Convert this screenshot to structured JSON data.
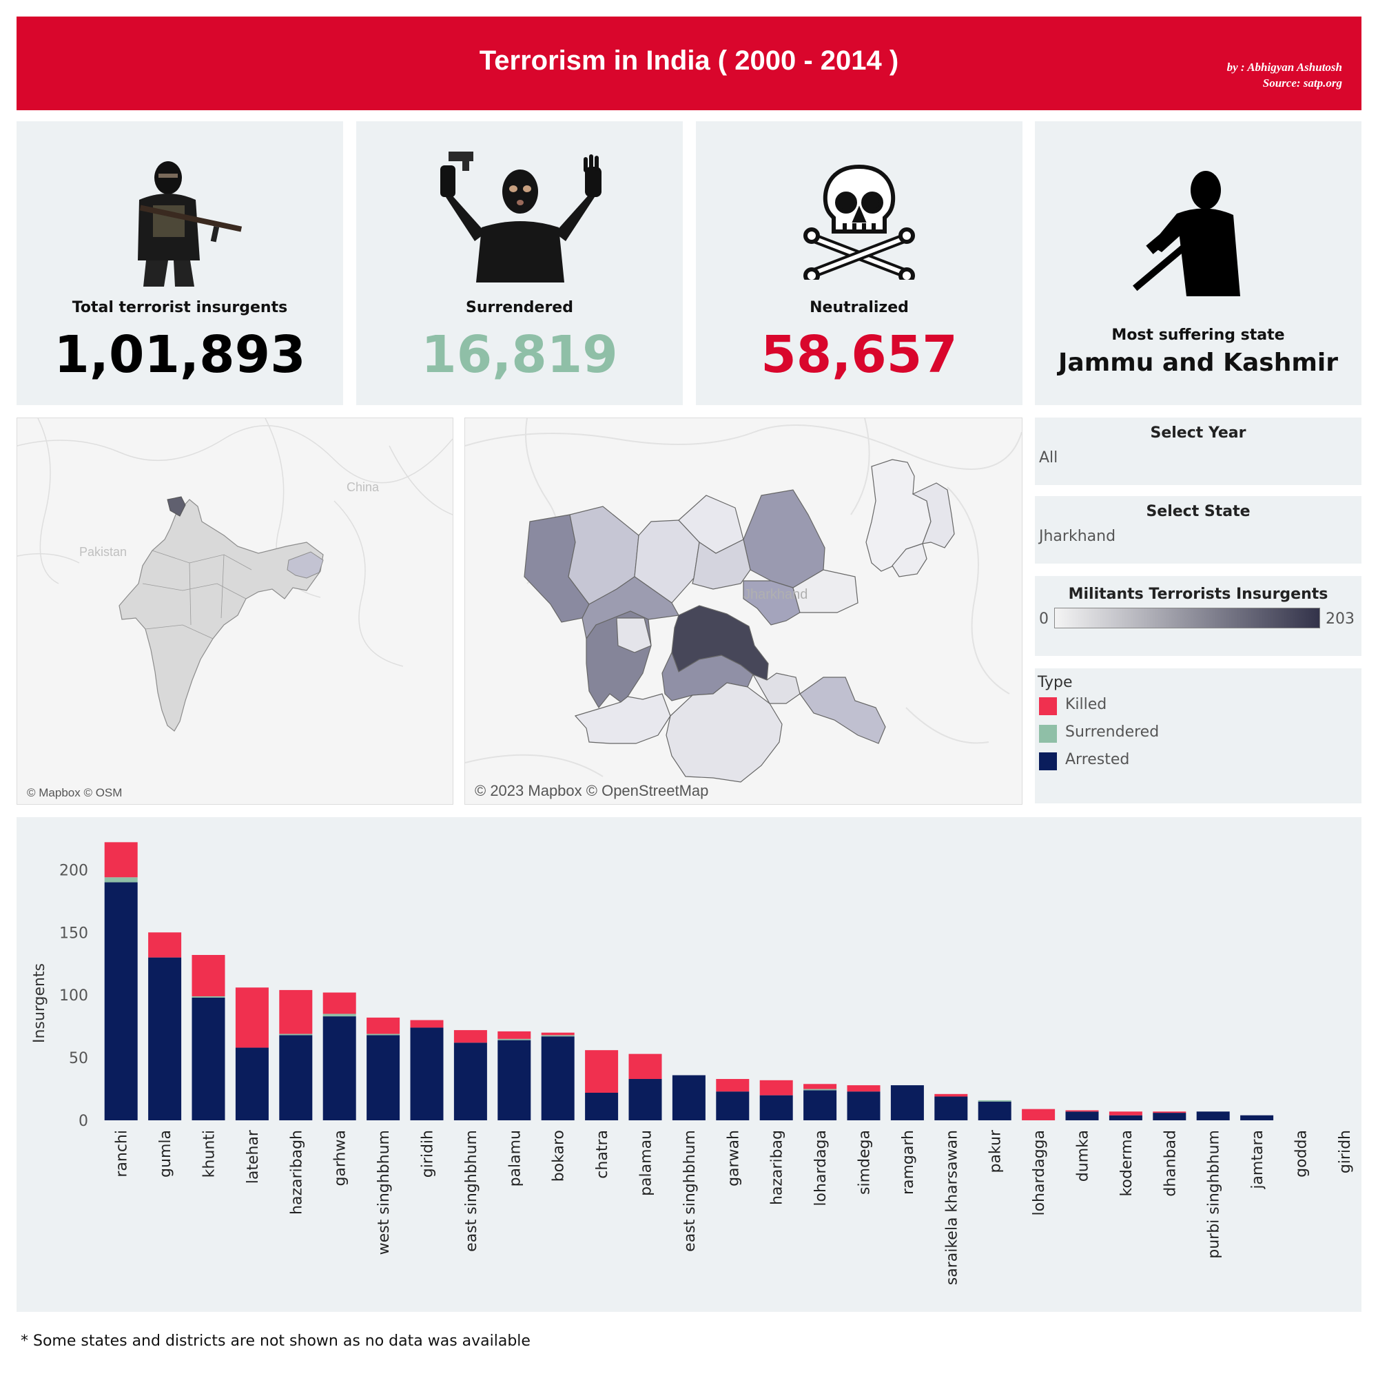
{
  "header": {
    "title": "Terrorism in India ( 2000 - 2014 )",
    "byline_author": "by : Abhigyan Ashutosh",
    "byline_source": "Source: satp.org",
    "color": "#d9062c"
  },
  "kpis": {
    "total": {
      "label": "Total terrorist insurgents",
      "value": "1,01,893",
      "icon": "gunman-icon",
      "color": "#000000"
    },
    "surrendered": {
      "label": "Surrendered",
      "value": "16,819",
      "icon": "hands-up-icon",
      "color": "#8fbfa7"
    },
    "neutralized": {
      "label": "Neutralized",
      "value": "58,657",
      "icon": "skull-crossbones-icon",
      "color": "#d9062c"
    },
    "most_suffering": {
      "label": "Most suffering state",
      "value": "Jammu and Kashmir",
      "icon": "soldier-silhouette-icon"
    }
  },
  "maps": {
    "india": {
      "credit": "© Mapbox © OSM",
      "labels": {
        "china": "China",
        "pakistan": "Pakistan"
      }
    },
    "state": {
      "credit": "© 2023 Mapbox © OpenStreetMap",
      "label": "Jharkhand"
    }
  },
  "filters": {
    "year": {
      "title": "Select Year",
      "value": "All"
    },
    "state": {
      "title": "Select State",
      "value": "Jharkhand"
    }
  },
  "color_legend": {
    "title": "Militants Terrorists Insurgents",
    "min": "0",
    "max": "203",
    "color_low": "#f4f4f4",
    "color_high": "#33334a"
  },
  "type_legend": {
    "title": "Type",
    "items": [
      {
        "label": "Killed",
        "color": "#f0304f"
      },
      {
        "label": "Surrendered",
        "color": "#8fbfa7"
      },
      {
        "label": "Arrested",
        "color": "#0a1d5c"
      }
    ]
  },
  "chart_data": {
    "type": "bar",
    "stacked": true,
    "ylabel": "Insurgents",
    "ylim": [
      0,
      220
    ],
    "yticks": [
      0,
      50,
      100,
      150,
      200
    ],
    "grid": false,
    "categories": [
      "ranchi",
      "gumla",
      "khunti",
      "latehar",
      "hazaribagh",
      "garhwa",
      "west singhbhum",
      "giridih",
      "east singhbhum",
      "palamu",
      "bokaro",
      "chatra",
      "palamau",
      "east singhbhum",
      "garwah",
      "hazaribag",
      "lohardaga",
      "simdega",
      "ramgarh",
      "saraikela kharsawan",
      "pakur",
      "lohardagga",
      "dumka",
      "koderma",
      "dhanbad",
      "purbi singhbhum",
      "jamtara",
      "godda",
      "giridh"
    ],
    "series": [
      {
        "name": "Arrested",
        "color": "#0a1d5c",
        "values": [
          190,
          130,
          98,
          58,
          68,
          83,
          68,
          74,
          62,
          64,
          67,
          22,
          33,
          36,
          23,
          20,
          24,
          23,
          28,
          19,
          15,
          0,
          7,
          4,
          6,
          7,
          4,
          0,
          0
        ]
      },
      {
        "name": "Surrendered",
        "color": "#8fbfa7",
        "values": [
          4,
          0,
          1,
          0,
          1,
          2,
          1,
          0,
          0,
          1,
          1,
          0,
          0,
          0,
          0,
          0,
          1,
          0,
          0,
          0,
          1,
          0,
          0,
          0,
          0,
          0,
          0,
          0,
          0
        ]
      },
      {
        "name": "Killed",
        "color": "#f0304f",
        "values": [
          28,
          20,
          33,
          48,
          35,
          17,
          13,
          6,
          10,
          6,
          2,
          34,
          20,
          0,
          10,
          12,
          4,
          5,
          0,
          2,
          0,
          9,
          1,
          3,
          1,
          0,
          0,
          0,
          0
        ]
      }
    ]
  },
  "footnote": "* Some states and districts are not shown as no data was available"
}
